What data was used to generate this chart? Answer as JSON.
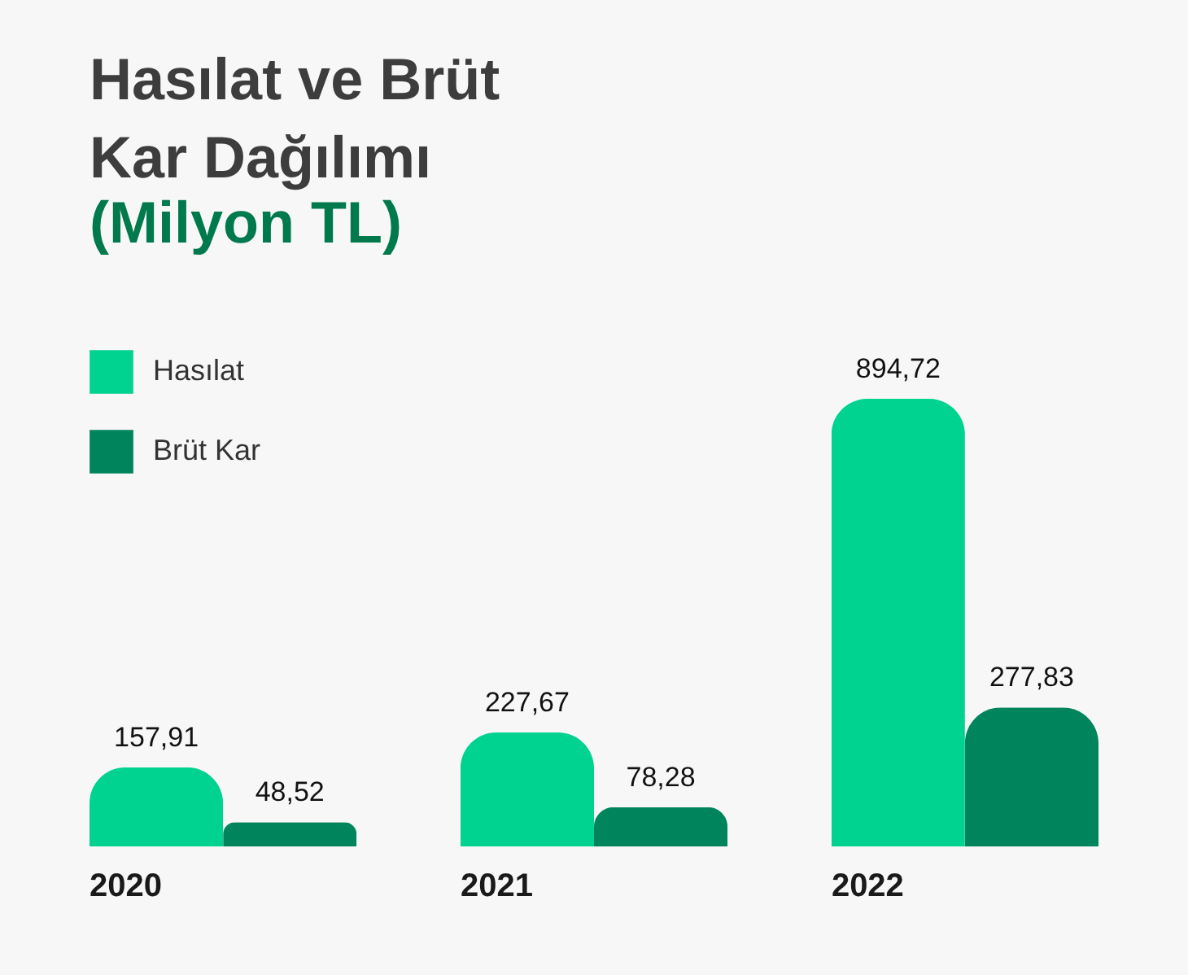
{
  "chart_data": {
    "type": "bar",
    "title": "Hasılat ve Brüt Kar Dağılımı",
    "subtitle": "(Milyon TL)",
    "categories": [
      "2020",
      "2021",
      "2022"
    ],
    "series": [
      {
        "name": "Hasılat",
        "color": "#00d28f",
        "values": [
          157.91,
          227.67,
          894.72
        ],
        "value_labels": [
          "157,91",
          "227,67",
          "894,72"
        ]
      },
      {
        "name": "Brüt Kar",
        "color": "#00845c",
        "values": [
          48.52,
          78.28,
          277.83
        ],
        "value_labels": [
          "48,52",
          "78,28",
          "277,83"
        ]
      }
    ],
    "legend": "top left",
    "grid": false
  }
}
